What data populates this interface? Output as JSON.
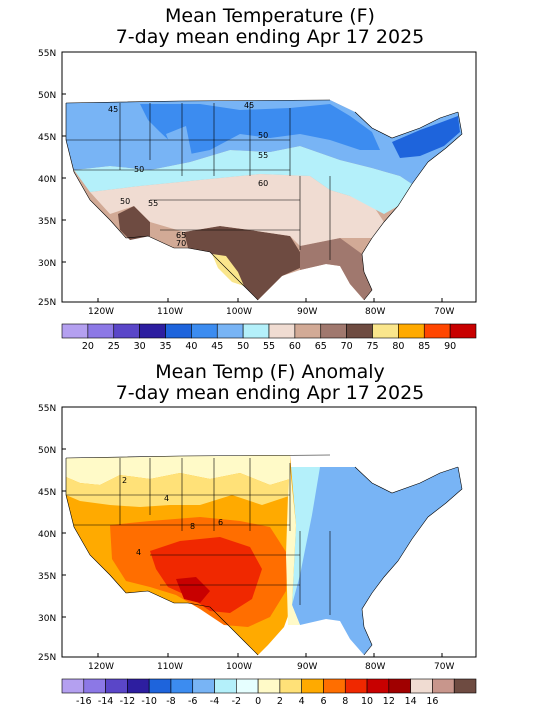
{
  "panels": [
    {
      "title_line1": "Mean Temperature (F)",
      "title_line2": "7-day mean ending Apr 17 2025",
      "lat_labels": [
        "55N",
        "50N",
        "45N",
        "40N",
        "35N",
        "30N",
        "25N"
      ],
      "lon_labels": [
        "120W",
        "110W",
        "100W",
        "90W",
        "80W",
        "70W"
      ],
      "colorbar_labels": [
        "20",
        "25",
        "30",
        "35",
        "40",
        "45",
        "50",
        "55",
        "60",
        "65",
        "70",
        "75",
        "80",
        "85",
        "90"
      ],
      "colorbar_colors": [
        "#b4a0f0",
        "#8c78e6",
        "#5a46c8",
        "#2d1ea0",
        "#1e64dc",
        "#3c8cf0",
        "#78b4f5",
        "#b4f0fa",
        "#f0dcd2",
        "#d2aa96",
        "#a0786e",
        "#6e4b41",
        "#fae68c",
        "#ffaa00",
        "#ff4600",
        "#c80000"
      ],
      "contour_labels": [
        "45",
        "45",
        "50",
        "50",
        "55",
        "60",
        "50",
        "55",
        "60",
        "65",
        "70"
      ],
      "colors": {
        "cold": "#3c8cf0",
        "cool": "#78b4f5",
        "mild": "#b4f0fa",
        "tan": "#f0dcd2",
        "brown": "#a0786e",
        "dark_brown": "#6e4b41",
        "warm": "#fae68c"
      }
    },
    {
      "title_line1": "Mean Temp (F) Anomaly",
      "title_line2": "7-day mean ending Apr 17 2025",
      "lat_labels": [
        "55N",
        "50N",
        "45N",
        "40N",
        "35N",
        "30N",
        "25N"
      ],
      "lon_labels": [
        "120W",
        "110W",
        "100W",
        "90W",
        "80W",
        "70W"
      ],
      "colorbar_labels": [
        "-16",
        "-14",
        "-12",
        "-10",
        "-8",
        "-6",
        "-4",
        "-2",
        "0",
        "2",
        "4",
        "6",
        "8",
        "10",
        "12",
        "14",
        "16"
      ],
      "colorbar_colors": [
        "#b4a0f0",
        "#8c78e6",
        "#5a46c8",
        "#2d1ea0",
        "#1e64dc",
        "#3c8cf0",
        "#78b4f5",
        "#b4f0fa",
        "#e6ffff",
        "#fffac8",
        "#ffe178",
        "#ffaa00",
        "#ff6e00",
        "#f02800",
        "#c80000",
        "#a00000",
        "#f0dcd2",
        "#c8968c",
        "#6e4b41"
      ],
      "contour_labels": [
        "2",
        "4",
        "6",
        "8",
        "4"
      ],
      "colors": {
        "neg_light": "#b4f0fa",
        "neg": "#78b4f5",
        "pos_light": "#fffac8",
        "pos": "#ffe178",
        "pos_mid": "#ffaa00",
        "pos_high": "#ff6e00",
        "pos_max": "#f02800"
      }
    }
  ]
}
